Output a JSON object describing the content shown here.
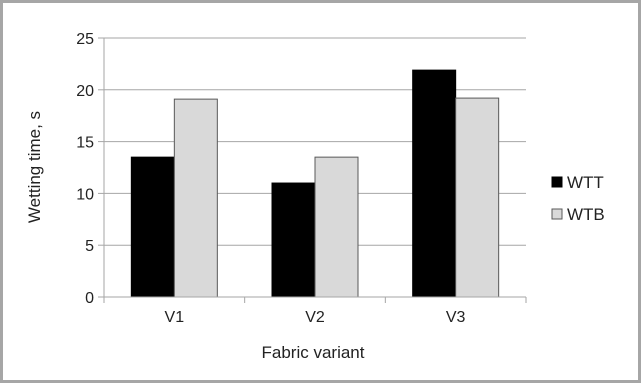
{
  "chart_data": {
    "type": "bar",
    "categories": [
      "V1",
      "V2",
      "V3"
    ],
    "series": [
      {
        "name": "WTT",
        "values": [
          13.5,
          11.0,
          21.9
        ],
        "color": "#000000"
      },
      {
        "name": "WTB",
        "values": [
          19.1,
          13.5,
          19.2
        ],
        "color": "#d9d9d9"
      }
    ],
    "xlabel": "Fabric variant",
    "ylabel": "Wetting time, s",
    "ylim": [
      0,
      25
    ],
    "yticks": [
      0,
      5,
      10,
      15,
      20,
      25
    ],
    "grid": true,
    "legend": "right",
    "frame_color": "#a6a6a6",
    "grid_color": "#a6a6a6"
  }
}
